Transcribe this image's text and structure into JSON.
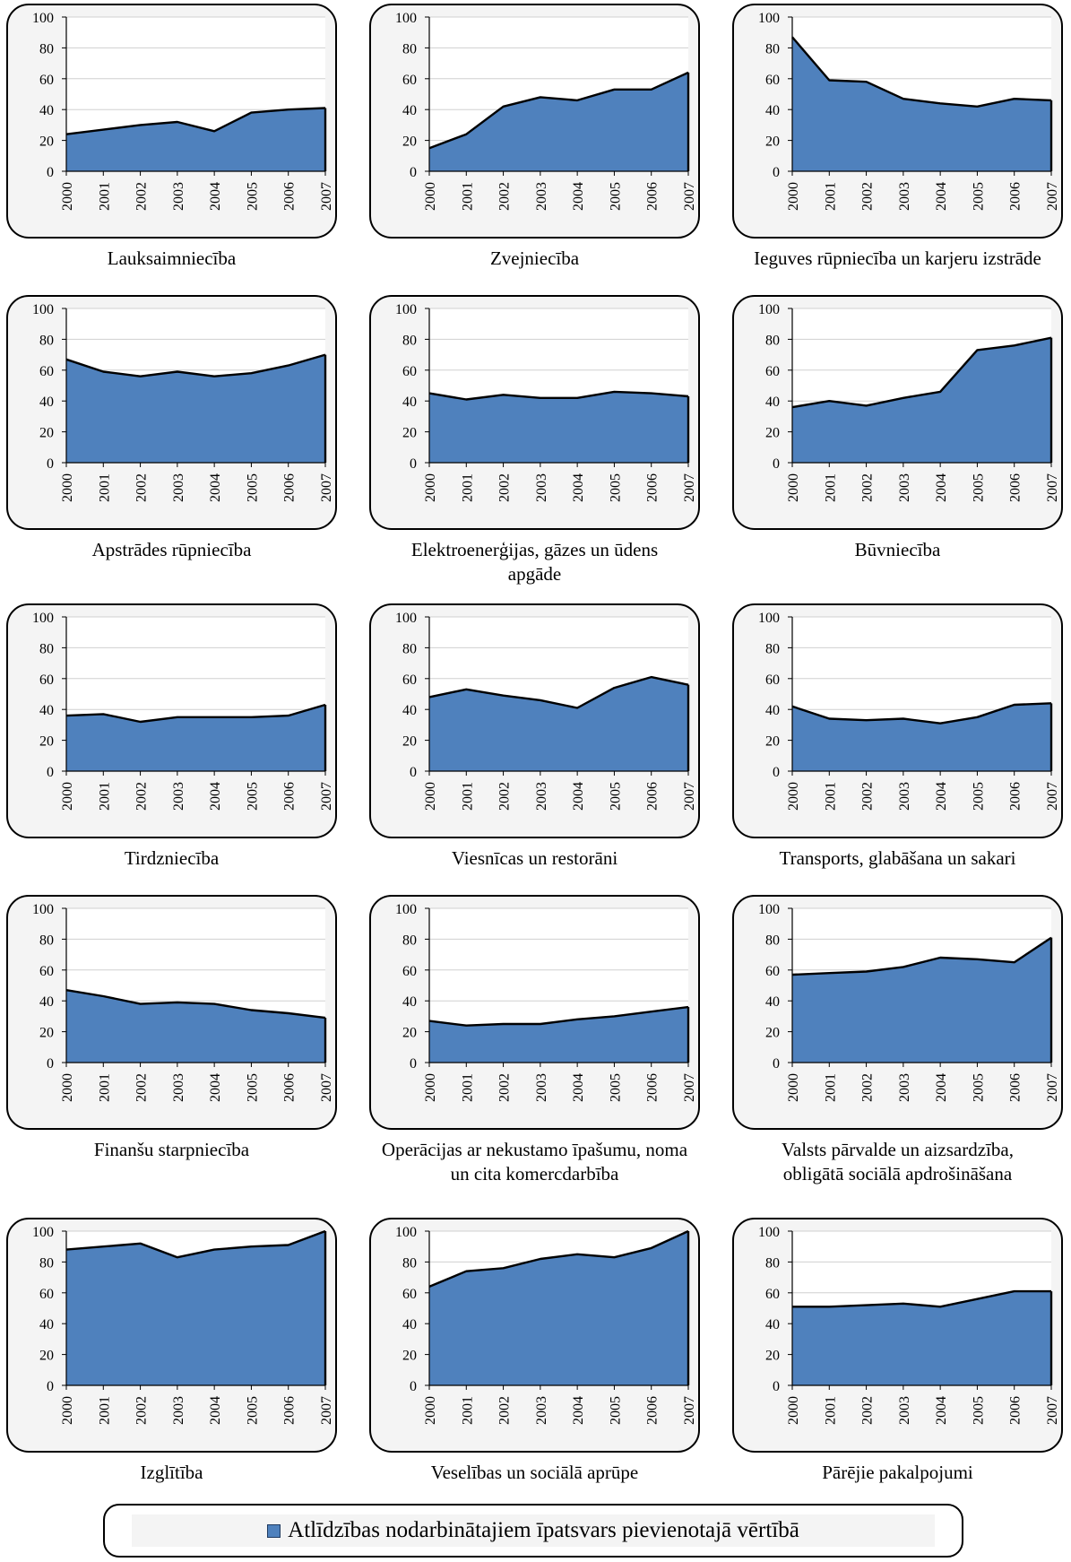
{
  "chart_data": [
    {
      "type": "area",
      "title": "Lauksaimniecība",
      "x": [
        "2000",
        "2001",
        "2002",
        "2003",
        "2004",
        "2005",
        "2006",
        "2007"
      ],
      "series": [
        {
          "name": "Atlīdzības nodarbinātajiem īpatsvars pievienotajā vērtībā",
          "values": [
            24,
            27,
            30,
            32,
            26,
            38,
            40,
            41
          ]
        }
      ],
      "yticks": [
        "0",
        "20",
        "40",
        "60",
        "80",
        "100"
      ],
      "ylim": [
        0,
        100
      ],
      "grid": true
    },
    {
      "type": "area",
      "title": "Zvejniecība",
      "x": [
        "2000",
        "2001",
        "2002",
        "2003",
        "2004",
        "2005",
        "2006",
        "2007"
      ],
      "series": [
        {
          "name": "Atlīdzības nodarbinātajiem īpatsvars pievienotajā vērtībā",
          "values": [
            15,
            24,
            42,
            48,
            46,
            53,
            53,
            64
          ]
        }
      ],
      "yticks": [
        "0",
        "20",
        "40",
        "60",
        "80",
        "100"
      ],
      "ylim": [
        0,
        100
      ],
      "grid": true
    },
    {
      "type": "area",
      "title": "Ieguves rūpniecība un karjeru izstrāde",
      "x": [
        "2000",
        "2001",
        "2002",
        "2003",
        "2004",
        "2005",
        "2006",
        "2007"
      ],
      "series": [
        {
          "name": "Atlīdzības nodarbinātajiem īpatsvars pievienotajā vērtībā",
          "values": [
            87,
            59,
            58,
            47,
            44,
            42,
            47,
            46
          ]
        }
      ],
      "yticks": [
        "0",
        "20",
        "40",
        "60",
        "80",
        "100"
      ],
      "ylim": [
        0,
        100
      ],
      "grid": true
    },
    {
      "type": "area",
      "title": "Apstrādes rūpniecība",
      "x": [
        "2000",
        "2001",
        "2002",
        "2003",
        "2004",
        "2005",
        "2006",
        "2007"
      ],
      "series": [
        {
          "name": "Atlīdzības nodarbinātajiem īpatsvars pievienotajā vērtībā",
          "values": [
            67,
            59,
            56,
            59,
            56,
            58,
            63,
            70
          ]
        }
      ],
      "yticks": [
        "0",
        "20",
        "40",
        "60",
        "80",
        "100"
      ],
      "ylim": [
        0,
        100
      ],
      "grid": true
    },
    {
      "type": "area",
      "title": "Elektroenerģijas, gāzes un ūdens apgāde",
      "x": [
        "2000",
        "2001",
        "2002",
        "2003",
        "2004",
        "2005",
        "2006",
        "2007"
      ],
      "series": [
        {
          "name": "Atlīdzības nodarbinātajiem īpatsvars pievienotajā vērtībā",
          "values": [
            45,
            41,
            44,
            42,
            42,
            46,
            45,
            43
          ]
        }
      ],
      "yticks": [
        "0",
        "20",
        "40",
        "60",
        "80",
        "100"
      ],
      "ylim": [
        0,
        100
      ],
      "grid": true
    },
    {
      "type": "area",
      "title": "Būvniecība",
      "x": [
        "2000",
        "2001",
        "2002",
        "2003",
        "2004",
        "2005",
        "2006",
        "2007"
      ],
      "series": [
        {
          "name": "Atlīdzības nodarbinātajiem īpatsvars pievienotajā vērtībā",
          "values": [
            36,
            40,
            37,
            42,
            46,
            73,
            76,
            81
          ]
        }
      ],
      "yticks": [
        "0",
        "20",
        "40",
        "60",
        "80",
        "100"
      ],
      "ylim": [
        0,
        100
      ],
      "grid": true
    },
    {
      "type": "area",
      "title": "Tirdzniecība",
      "x": [
        "2000",
        "2001",
        "2002",
        "2003",
        "2004",
        "2005",
        "2006",
        "2007"
      ],
      "series": [
        {
          "name": "Atlīdzības nodarbinātajiem īpatsvars pievienotajā vērtībā",
          "values": [
            36,
            37,
            32,
            35,
            35,
            35,
            36,
            43
          ]
        }
      ],
      "yticks": [
        "0",
        "20",
        "40",
        "60",
        "80",
        "100"
      ],
      "ylim": [
        0,
        100
      ],
      "grid": true
    },
    {
      "type": "area",
      "title": "Viesnīcas un restorāni",
      "x": [
        "2000",
        "2001",
        "2002",
        "2003",
        "2004",
        "2005",
        "2006",
        "2007"
      ],
      "series": [
        {
          "name": "Atlīdzības nodarbinātajiem īpatsvars pievienotajā vērtībā",
          "values": [
            48,
            53,
            49,
            46,
            41,
            54,
            61,
            56
          ]
        }
      ],
      "yticks": [
        "0",
        "20",
        "40",
        "60",
        "80",
        "100"
      ],
      "ylim": [
        0,
        100
      ],
      "grid": true
    },
    {
      "type": "area",
      "title": "Transports, glabāšana un sakari",
      "x": [
        "2000",
        "2001",
        "2002",
        "2003",
        "2004",
        "2005",
        "2006",
        "2007"
      ],
      "series": [
        {
          "name": "Atlīdzības nodarbinātajiem īpatsvars pievienotajā vērtībā",
          "values": [
            42,
            34,
            33,
            34,
            31,
            35,
            43,
            44
          ]
        }
      ],
      "yticks": [
        "0",
        "20",
        "40",
        "60",
        "80",
        "100"
      ],
      "ylim": [
        0,
        100
      ],
      "grid": true
    },
    {
      "type": "area",
      "title": "Finanšu starpniecība",
      "x": [
        "2000",
        "2001",
        "2002",
        "2003",
        "2004",
        "2005",
        "2006",
        "2007"
      ],
      "series": [
        {
          "name": "Atlīdzības nodarbinātajiem īpatsvars pievienotajā vērtībā",
          "values": [
            47,
            43,
            38,
            39,
            38,
            34,
            32,
            29
          ]
        }
      ],
      "yticks": [
        "0",
        "20",
        "40",
        "60",
        "80",
        "100"
      ],
      "ylim": [
        0,
        100
      ],
      "grid": true
    },
    {
      "type": "area",
      "title": "Operācijas ar nekustamo īpašumu, noma un cita komercdarbība",
      "x": [
        "2000",
        "2001",
        "2002",
        "2003",
        "2004",
        "2005",
        "2006",
        "2007"
      ],
      "series": [
        {
          "name": "Atlīdzības nodarbinātajiem īpatsvars pievienotajā vērtībā",
          "values": [
            27,
            24,
            25,
            25,
            28,
            30,
            33,
            36
          ]
        }
      ],
      "yticks": [
        "0",
        "20",
        "40",
        "60",
        "80",
        "100"
      ],
      "ylim": [
        0,
        100
      ],
      "grid": true
    },
    {
      "type": "area",
      "title": "Valsts pārvalde un aizsardzība, obligātā sociālā apdrošināšana",
      "x": [
        "2000",
        "2001",
        "2002",
        "2003",
        "2004",
        "2005",
        "2006",
        "2007"
      ],
      "series": [
        {
          "name": "Atlīdzības nodarbinātajiem īpatsvars pievienotajā vērtībā",
          "values": [
            57,
            58,
            59,
            62,
            68,
            67,
            65,
            81
          ]
        }
      ],
      "yticks": [
        "0",
        "20",
        "40",
        "60",
        "80",
        "100"
      ],
      "ylim": [
        0,
        100
      ],
      "grid": true
    },
    {
      "type": "area",
      "title": "Izglītība",
      "x": [
        "2000",
        "2001",
        "2002",
        "2003",
        "2004",
        "2005",
        "2006",
        "2007"
      ],
      "series": [
        {
          "name": "Atlīdzības nodarbinātajiem īpatsvars pievienotajā vērtībā",
          "values": [
            88,
            90,
            92,
            83,
            88,
            90,
            91,
            102
          ]
        }
      ],
      "yticks": [
        "0",
        "20",
        "40",
        "60",
        "80",
        "100"
      ],
      "ylim": [
        0,
        100
      ],
      "grid": true
    },
    {
      "type": "area",
      "title": "Veselības un sociālā aprūpe",
      "x": [
        "2000",
        "2001",
        "2002",
        "2003",
        "2004",
        "2005",
        "2006",
        "2007"
      ],
      "series": [
        {
          "name": "Atlīdzības nodarbinātajiem īpatsvars pievienotajā vērtībā",
          "values": [
            64,
            74,
            76,
            82,
            85,
            83,
            89,
            102
          ]
        }
      ],
      "yticks": [
        "0",
        "20",
        "40",
        "60",
        "80",
        "100"
      ],
      "ylim": [
        0,
        100
      ],
      "grid": true
    },
    {
      "type": "area",
      "title": "Pārējie pakalpojumi",
      "x": [
        "2000",
        "2001",
        "2002",
        "2003",
        "2004",
        "2005",
        "2006",
        "2007"
      ],
      "series": [
        {
          "name": "Atlīdzības nodarbinātajiem īpatsvars pievienotajā vērtībā",
          "values": [
            51,
            51,
            52,
            53,
            51,
            56,
            61,
            61
          ]
        }
      ],
      "yticks": [
        "0",
        "20",
        "40",
        "60",
        "80",
        "100"
      ],
      "ylim": [
        0,
        100
      ],
      "grid": true
    }
  ],
  "legend": {
    "label": "Atlīdzības nodarbinātajiem īpatsvars pievienotajā vērtībā"
  },
  "colors": {
    "fill": "#4f81bd",
    "line": "#000000",
    "grid": "#d0d0d0",
    "frame_bg": "#f4f4f4"
  }
}
